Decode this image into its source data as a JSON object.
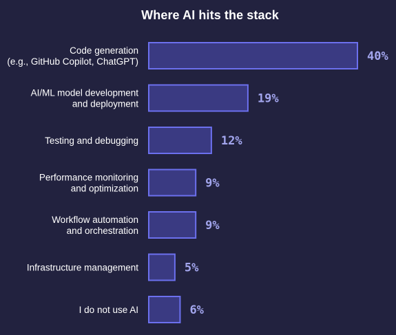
{
  "colors": {
    "background": "#22223f",
    "bar_fill": "#3a3a82",
    "bar_stroke": "#6c70ee",
    "value_text": "#a3a6ee",
    "label_text": "#ffffff"
  },
  "chart_data": {
    "type": "bar",
    "orientation": "horizontal",
    "title": "Where AI hits the stack",
    "xlabel": "",
    "ylabel": "",
    "xlim": [
      0,
      40
    ],
    "grid": false,
    "legend": "none",
    "unit": "%",
    "categories": [
      [
        "Code generation",
        "(e.g., GitHub Copilot, ChatGPT)"
      ],
      [
        "AI/ML model development",
        "and deployment"
      ],
      [
        "Testing and debugging"
      ],
      [
        "Performance monitoring",
        "and optimization"
      ],
      [
        "Workflow automation",
        "and orchestration"
      ],
      [
        "Infrastructure management"
      ],
      [
        "I do not use AI"
      ]
    ],
    "values": [
      40,
      19,
      12,
      9,
      9,
      5,
      6
    ],
    "value_labels": [
      "40%",
      "19%",
      "12%",
      "9%",
      "9%",
      "5%",
      "6%"
    ]
  }
}
